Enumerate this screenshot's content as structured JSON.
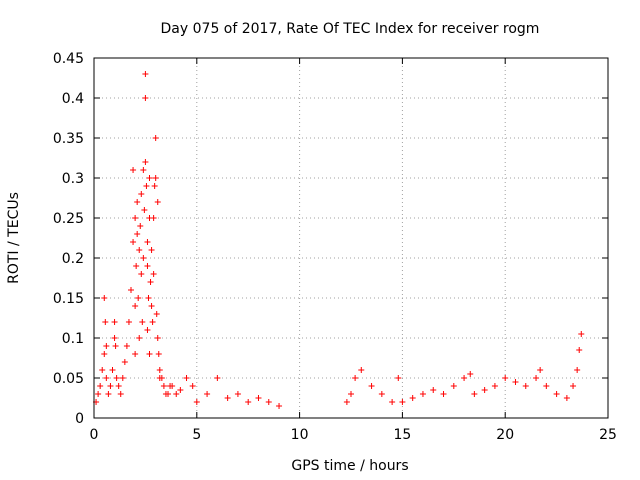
{
  "chart_data": {
    "type": "scatter",
    "title": "Day 075 of 2017, Rate Of TEC Index for receiver rogm",
    "xlabel": "GPS time / hours",
    "ylabel": "ROTI / TECUs",
    "xlim": [
      0,
      25
    ],
    "ylim": [
      0,
      0.45
    ],
    "xticks": [
      0,
      5,
      10,
      15,
      20,
      25
    ],
    "yticks": [
      0,
      0.05,
      0.1,
      0.15,
      0.2,
      0.25,
      0.3,
      0.35,
      0.4,
      0.45
    ],
    "xtick_labels": [
      "0",
      "5",
      "10",
      "15",
      "20",
      "25"
    ],
    "ytick_labels": [
      "0",
      "0.05",
      "0.1",
      "0.15",
      "0.2",
      "0.25",
      "0.3",
      "0.35",
      "0.4",
      "0.45"
    ],
    "grid": true,
    "marker": "+",
    "color": "#ff0000",
    "series": [
      {
        "name": "ROTI",
        "x": [
          0.1,
          0.2,
          0.3,
          0.4,
          0.5,
          0.5,
          0.55,
          0.6,
          0.6,
          0.7,
          0.8,
          0.9,
          1.0,
          1.0,
          1.05,
          1.1,
          1.2,
          1.3,
          1.4,
          1.5,
          1.6,
          1.7,
          1.8,
          1.9,
          1.9,
          2.0,
          2.0,
          2.0,
          2.05,
          2.1,
          2.1,
          2.15,
          2.2,
          2.2,
          2.25,
          2.3,
          2.3,
          2.35,
          2.4,
          2.4,
          2.45,
          2.5,
          2.5,
          2.5,
          2.55,
          2.6,
          2.6,
          2.6,
          2.65,
          2.7,
          2.7,
          2.7,
          2.75,
          2.8,
          2.8,
          2.85,
          2.9,
          2.9,
          2.95,
          3.0,
          3.0,
          3.05,
          3.1,
          3.1,
          3.15,
          3.2,
          3.2,
          3.3,
          3.4,
          3.5,
          3.6,
          3.7,
          3.8,
          4.0,
          4.2,
          4.5,
          4.8,
          5.0,
          5.5,
          6.0,
          6.5,
          7.0,
          7.5,
          8.0,
          8.5,
          9.0,
          12.3,
          12.5,
          12.7,
          13.0,
          13.5,
          14.0,
          14.5,
          14.8,
          15.0,
          15.5,
          16.0,
          16.5,
          17.0,
          17.5,
          18.0,
          18.3,
          18.5,
          19.0,
          19.5,
          20.0,
          20.5,
          21.0,
          21.5,
          21.7,
          22.0,
          22.5,
          23.0,
          23.3,
          23.5,
          23.6,
          23.7
        ],
        "y": [
          0.02,
          0.03,
          0.04,
          0.06,
          0.08,
          0.15,
          0.12,
          0.09,
          0.05,
          0.03,
          0.04,
          0.06,
          0.1,
          0.12,
          0.09,
          0.05,
          0.04,
          0.03,
          0.05,
          0.07,
          0.09,
          0.12,
          0.16,
          0.22,
          0.31,
          0.25,
          0.14,
          0.08,
          0.19,
          0.23,
          0.27,
          0.15,
          0.1,
          0.21,
          0.24,
          0.18,
          0.28,
          0.12,
          0.2,
          0.31,
          0.26,
          0.4,
          0.43,
          0.32,
          0.29,
          0.22,
          0.19,
          0.11,
          0.15,
          0.3,
          0.25,
          0.08,
          0.17,
          0.21,
          0.14,
          0.12,
          0.25,
          0.18,
          0.29,
          0.35,
          0.3,
          0.13,
          0.1,
          0.27,
          0.08,
          0.06,
          0.05,
          0.05,
          0.04,
          0.03,
          0.03,
          0.04,
          0.04,
          0.03,
          0.035,
          0.05,
          0.04,
          0.02,
          0.03,
          0.05,
          0.025,
          0.03,
          0.02,
          0.025,
          0.02,
          0.015,
          0.02,
          0.03,
          0.05,
          0.06,
          0.04,
          0.03,
          0.02,
          0.05,
          0.02,
          0.025,
          0.03,
          0.035,
          0.03,
          0.04,
          0.05,
          0.055,
          0.03,
          0.035,
          0.04,
          0.05,
          0.045,
          0.04,
          0.05,
          0.06,
          0.04,
          0.03,
          0.025,
          0.04,
          0.06,
          0.085,
          0.105
        ]
      }
    ]
  }
}
